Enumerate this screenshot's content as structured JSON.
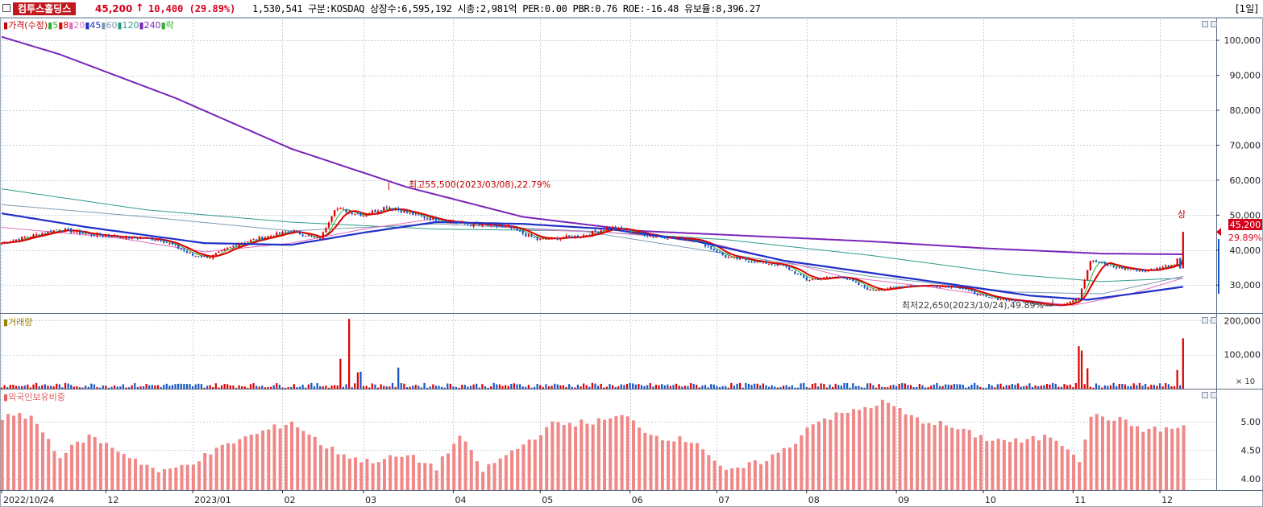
{
  "header": {
    "name": "컴투스홀딩스",
    "price": "45,200",
    "arrow": "↑",
    "change": "10,400 (29.89%)",
    "info": "1,530,541  구분:KOSDAQ 상장수:6,595,192 시총:2,981억 PER:0.00 PBR:0.76 ROE:-16.48 유보율:8,396.27",
    "period": "[1일]"
  },
  "legend_price": {
    "items": [
      {
        "label": "가격(수정)",
        "color": "#c00000"
      },
      {
        "label": "5",
        "color": "#2db02d"
      },
      {
        "label": "8",
        "color": "#e00000"
      },
      {
        "label": "20",
        "color": "#e070c0"
      },
      {
        "label": "45",
        "color": "#1f2fc8"
      },
      {
        "label": "60",
        "color": "#7d9bb0"
      },
      {
        "label": "120",
        "color": "#2e9a8a"
      },
      {
        "label": "240",
        "color": "#7a24b8"
      },
      {
        "label": "락",
        "color": "#2db02d"
      }
    ]
  },
  "legend_volume": {
    "label": "거래량",
    "color": "#a08000"
  },
  "legend_foreign": {
    "label": "외국인보유비중",
    "color": "#e06060"
  },
  "annotations": {
    "high": "최고55,500(2023/03/08),22.79%",
    "low": "최저22,650(2023/10/24),49.89%",
    "upper_tag": "상"
  },
  "price_tag": {
    "value": "45,200",
    "pct": "29.89%"
  },
  "volume_unit": "× 10",
  "chart_data": [
    {
      "type": "candlestick",
      "title": "",
      "ylim": [
        22000,
        106000
      ],
      "yticks": [
        "100,000",
        "90,000",
        "80,000",
        "70,000",
        "60,000",
        "50,000",
        "40,000",
        "30,000"
      ],
      "ytick_values": [
        100000,
        90000,
        80000,
        70000,
        60000,
        50000,
        40000,
        30000
      ],
      "x_labels": [
        "2022/10/24",
        "12",
        "2023/01",
        "02",
        "03",
        "04",
        "05",
        "06",
        "07",
        "08",
        "09",
        "10",
        "11",
        "12"
      ],
      "x_label_days": [
        0,
        36,
        66,
        97,
        125,
        156,
        186,
        217,
        247,
        278,
        309,
        339,
        370,
        400
      ],
      "total_days": 410,
      "close_anchors": [
        [
          0,
          42000
        ],
        [
          10,
          44000
        ],
        [
          20,
          46000
        ],
        [
          30,
          44500
        ],
        [
          45,
          43500
        ],
        [
          55,
          43000
        ],
        [
          66,
          38500
        ],
        [
          72,
          38000
        ],
        [
          82,
          42000
        ],
        [
          100,
          45500
        ],
        [
          110,
          43000
        ],
        [
          115,
          52000
        ],
        [
          125,
          50000
        ],
        [
          133,
          52500
        ],
        [
          145,
          49500
        ],
        [
          160,
          47500
        ],
        [
          175,
          46500
        ],
        [
          185,
          43000
        ],
        [
          200,
          44000
        ],
        [
          210,
          46500
        ],
        [
          225,
          44000
        ],
        [
          240,
          43000
        ],
        [
          250,
          38000
        ],
        [
          258,
          37000
        ],
        [
          270,
          35500
        ],
        [
          278,
          31500
        ],
        [
          290,
          32500
        ],
        [
          300,
          28500
        ],
        [
          315,
          30000
        ],
        [
          330,
          29500
        ],
        [
          340,
          26500
        ],
        [
          355,
          25000
        ],
        [
          365,
          24000
        ],
        [
          372,
          26500
        ],
        [
          376,
          37000
        ],
        [
          385,
          35000
        ],
        [
          395,
          34000
        ],
        [
          405,
          36000
        ],
        [
          406,
          38000
        ],
        [
          407,
          34800
        ],
        [
          408,
          45200
        ]
      ],
      "ma240_anchors": [
        [
          0,
          101000
        ],
        [
          20,
          96000
        ],
        [
          60,
          83500
        ],
        [
          100,
          69000
        ],
        [
          140,
          58000
        ],
        [
          180,
          49500
        ],
        [
          220,
          45500
        ],
        [
          260,
          44000
        ],
        [
          300,
          42500
        ],
        [
          340,
          40500
        ],
        [
          380,
          39000
        ],
        [
          408,
          38800
        ]
      ],
      "ma120_anchors": [
        [
          0,
          57500
        ],
        [
          50,
          51500
        ],
        [
          100,
          48000
        ],
        [
          150,
          46000
        ],
        [
          200,
          45500
        ],
        [
          250,
          43000
        ],
        [
          300,
          38500
        ],
        [
          350,
          33000
        ],
        [
          380,
          31000
        ],
        [
          408,
          32000
        ]
      ],
      "ma60_anchors": [
        [
          0,
          53000
        ],
        [
          50,
          49500
        ],
        [
          100,
          45500
        ],
        [
          150,
          47500
        ],
        [
          200,
          45500
        ],
        [
          250,
          39000
        ],
        [
          300,
          32500
        ],
        [
          350,
          28000
        ],
        [
          380,
          27500
        ],
        [
          408,
          32500
        ]
      ],
      "ma45_anchors": [
        [
          0,
          50500
        ],
        [
          30,
          46500
        ],
        [
          70,
          42000
        ],
        [
          100,
          41500
        ],
        [
          125,
          45000
        ],
        [
          150,
          48000
        ],
        [
          180,
          47500
        ],
        [
          210,
          46000
        ],
        [
          240,
          42500
        ],
        [
          270,
          37000
        ],
        [
          300,
          33500
        ],
        [
          330,
          30000
        ],
        [
          355,
          27000
        ],
        [
          375,
          25800
        ],
        [
          395,
          28000
        ],
        [
          408,
          29500
        ]
      ],
      "ma20_anchors": [
        [
          0,
          46500
        ],
        [
          40,
          43500
        ],
        [
          70,
          39500
        ],
        [
          100,
          42000
        ],
        [
          125,
          46000
        ],
        [
          150,
          49000
        ],
        [
          180,
          46000
        ],
        [
          210,
          45000
        ],
        [
          240,
          43000
        ],
        [
          265,
          38000
        ],
        [
          290,
          32500
        ],
        [
          320,
          29500
        ],
        [
          350,
          26000
        ],
        [
          370,
          24200
        ],
        [
          390,
          27500
        ],
        [
          408,
          32000
        ]
      ],
      "last": {
        "open": 34800,
        "high": 45200,
        "low": 34800,
        "close": 45200
      }
    },
    {
      "type": "bar",
      "title": "거래량",
      "ylim": [
        0,
        215000
      ],
      "yticks": [
        "200,000",
        "100,000"
      ],
      "ytick_values": [
        200000,
        100000
      ],
      "spikes": [
        [
          117,
          88000
        ],
        [
          120,
          205000
        ],
        [
          123,
          48000
        ],
        [
          124,
          50000
        ],
        [
          137,
          62000
        ],
        [
          372,
          125000
        ],
        [
          373,
          112000
        ],
        [
          375,
          60000
        ],
        [
          406,
          55000
        ],
        [
          408,
          148000
        ]
      ],
      "baseline": 9000
    },
    {
      "type": "bar",
      "title": "외국인보유비중",
      "ylim": [
        3.8,
        5.55
      ],
      "yticks": [
        "5.00",
        "4.50",
        "4.00"
      ],
      "ytick_values": [
        5.0,
        4.5,
        4.0
      ],
      "anchors": [
        [
          0,
          5.08
        ],
        [
          10,
          5.1
        ],
        [
          20,
          4.4
        ],
        [
          30,
          4.75
        ],
        [
          40,
          4.5
        ],
        [
          55,
          4.1
        ],
        [
          66,
          4.3
        ],
        [
          80,
          4.65
        ],
        [
          100,
          5.0
        ],
        [
          112,
          4.55
        ],
        [
          125,
          4.3
        ],
        [
          140,
          4.4
        ],
        [
          150,
          4.2
        ],
        [
          158,
          4.75
        ],
        [
          166,
          4.15
        ],
        [
          180,
          4.6
        ],
        [
          190,
          4.95
        ],
        [
          205,
          5.0
        ],
        [
          215,
          5.1
        ],
        [
          225,
          4.75
        ],
        [
          240,
          4.65
        ],
        [
          250,
          4.1
        ],
        [
          262,
          4.3
        ],
        [
          272,
          4.55
        ],
        [
          280,
          5.0
        ],
        [
          295,
          5.2
        ],
        [
          305,
          5.35
        ],
        [
          315,
          5.05
        ],
        [
          325,
          4.95
        ],
        [
          340,
          4.7
        ],
        [
          352,
          4.65
        ],
        [
          362,
          4.75
        ],
        [
          368,
          4.55
        ],
        [
          372,
          4.35
        ],
        [
          376,
          5.1
        ],
        [
          385,
          5.05
        ],
        [
          395,
          4.85
        ],
        [
          408,
          4.9
        ]
      ]
    }
  ]
}
